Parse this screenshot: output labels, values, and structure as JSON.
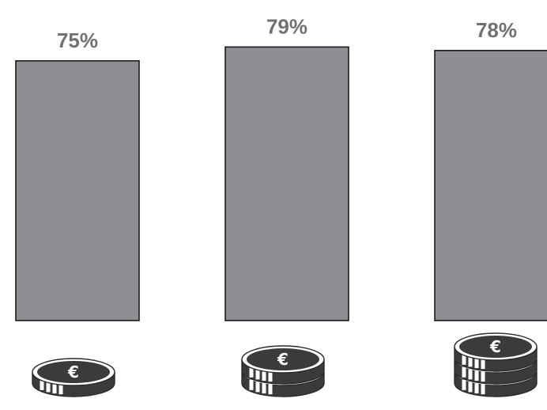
{
  "chart_data": {
    "type": "bar",
    "categories": [
      "1 coin",
      "2 coins",
      "3 coins"
    ],
    "values": [
      75,
      79,
      78
    ],
    "labels": [
      "75%",
      "79%",
      "78%"
    ],
    "coin_counts": [
      1,
      2,
      3
    ],
    "coin_icon": "euro-coin-icon",
    "title": "",
    "xlabel": "",
    "ylabel": "",
    "grid": false,
    "legend": "none"
  },
  "colors": {
    "bar_fill": "#8e8f93",
    "bar_stroke": "#1a1a1a",
    "label": "#707174",
    "coin_dark": "#3b3b3b",
    "coin_light": "#ffffff"
  }
}
